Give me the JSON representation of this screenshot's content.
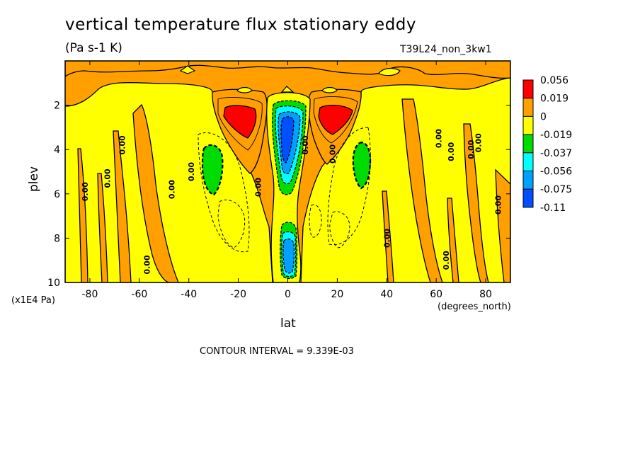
{
  "header": {
    "title": "vertical temperature flux stationary eddy",
    "units": "(Pa s-1 K)",
    "run_id": "T39L24_non_3kw1"
  },
  "footer": {
    "contour_interval": "CONTOUR INTERVAL = 9.339E-03"
  },
  "chart_data": {
    "type": "heatmap",
    "title": "vertical temperature flux stationary eddy",
    "xlabel": "lat",
    "ylabel": "plev",
    "x_units": "(degrees_north)",
    "y_units": "(x1E4 Pa)",
    "xlim": [
      -90,
      90
    ],
    "ylim": [
      10,
      0
    ],
    "x_ticks": [
      -80,
      -60,
      -40,
      -20,
      0,
      20,
      40,
      60,
      80
    ],
    "x_tick_labels": [
      "-80",
      "-60",
      "-40",
      "-20",
      "0",
      "20",
      "40",
      "60",
      "80"
    ],
    "y_ticks": [
      2,
      4,
      6,
      8,
      10
    ],
    "y_tick_labels": [
      "2",
      "4",
      "6",
      "8",
      "10"
    ],
    "colorbar": {
      "levels": [
        "0.056",
        "0.019",
        "0",
        "-0.019",
        "-0.037",
        "-0.056",
        "-0.075",
        "-0.11"
      ],
      "colors": [
        "#ff0000",
        "#ffa000",
        "#ffff00",
        "#00dc00",
        "#00ffff",
        "#00a0ff",
        "#0050ff"
      ]
    },
    "contour_labels": [
      "0.00"
    ],
    "contour_interval": "9.339E-03",
    "features": [
      {
        "lat": -15,
        "plev": 2.7,
        "band": "0.019 to 0.056"
      },
      {
        "lat": 15,
        "plev": 2.7,
        "band": "0.019 to 0.056"
      },
      {
        "lat": 0,
        "plev": 4.0,
        "band": "-0.11 to -0.075"
      },
      {
        "lat": 0,
        "plev": 9.0,
        "band": "-0.075 to -0.056"
      },
      {
        "lat": -30,
        "plev": 4.8,
        "band": "-0.037 to -0.019"
      },
      {
        "lat": 30,
        "plev": 4.8,
        "band": "-0.037 to -0.019"
      }
    ]
  }
}
